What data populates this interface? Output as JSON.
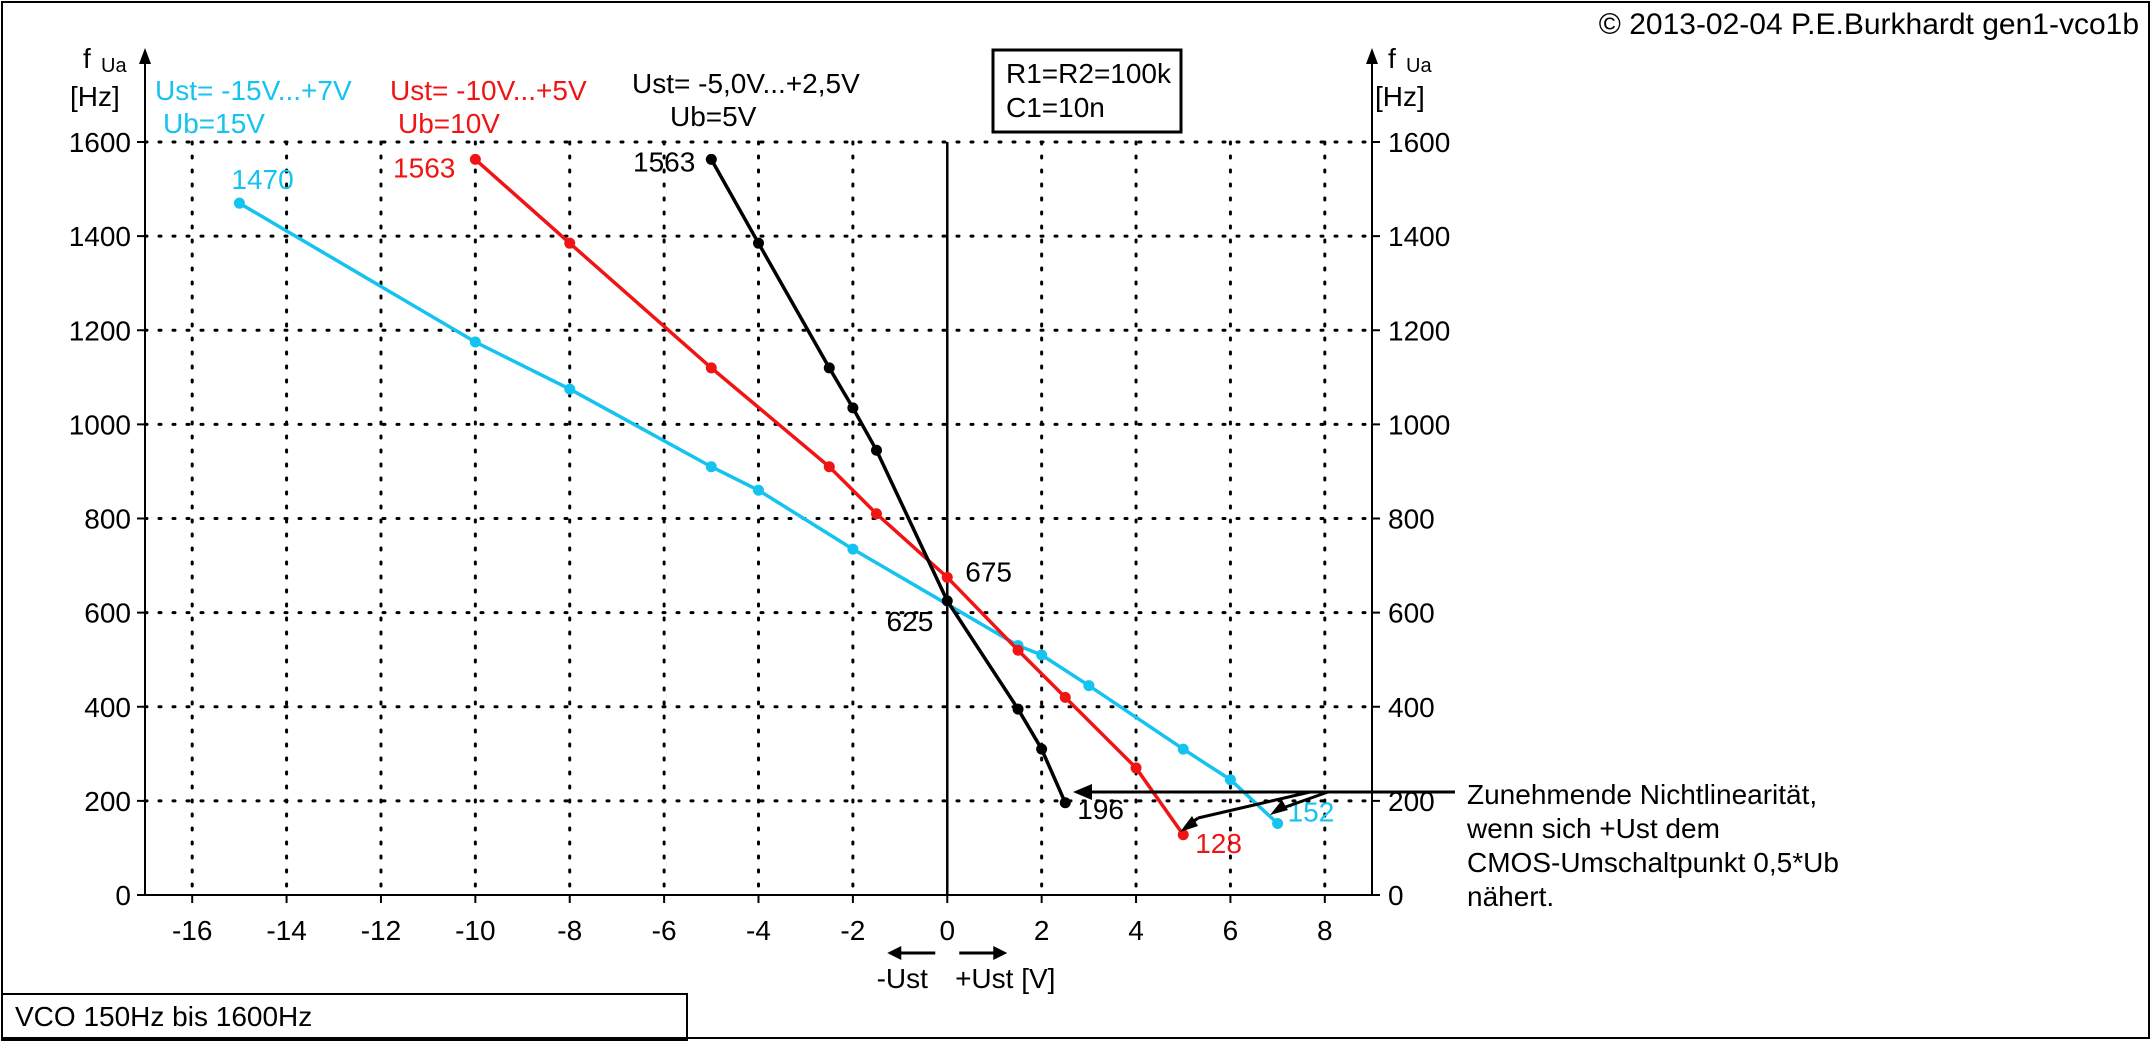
{
  "copyright": "© 2013-02-04 P.E.Burkhardt gen1-vco1b",
  "caption": "VCO 150Hz bis 1600Hz",
  "params_box": [
    "R1=R2=100k",
    "C1=10n"
  ],
  "axis": {
    "y_label_f": "f",
    "y_label_sub": "Ua",
    "y_unit": "[Hz]",
    "x_label_minus": "-Ust",
    "x_label_plus": "+Ust [V]"
  },
  "annotation": [
    "Zunehmende Nichtlinearität,",
    "wenn sich +Ust  dem",
    "CMOS-Umschaltpunkt 0,5*Ub",
    "nähert."
  ],
  "chart_data": {
    "type": "line",
    "xlim": [
      -17,
      9
    ],
    "ylim": [
      0,
      1600
    ],
    "grid": true,
    "x_ticks": [
      -16,
      -14,
      -12,
      -10,
      -8,
      -6,
      -4,
      -2,
      0,
      2,
      4,
      6,
      8
    ],
    "y_ticks": [
      0,
      200,
      400,
      600,
      800,
      1000,
      1200,
      1400,
      1600
    ],
    "series": [
      {
        "name": "Ust= -15V...+7V",
        "sub": "Ub=15V",
        "color": "#14c3ef",
        "x": [
          -15,
          -10,
          -8,
          -5,
          -4,
          -2,
          1.5,
          2,
          3,
          5,
          6,
          7
        ],
        "y": [
          1470,
          1175,
          1075,
          910,
          860,
          735,
          530,
          510,
          445,
          310,
          245,
          152
        ],
        "start_label": "1470",
        "end_label": "152"
      },
      {
        "name": "Ust= -10V...+5V",
        "sub": "Ub=10V",
        "color": "#f01414",
        "x": [
          -10,
          -8,
          -5,
          -2.5,
          -1.5,
          0,
          1.5,
          2.5,
          4,
          5
        ],
        "y": [
          1563,
          1385,
          1120,
          910,
          810,
          675,
          520,
          420,
          270,
          128
        ],
        "start_label": "1563",
        "end_label": "128"
      },
      {
        "name": "Ust= -5,0V...+2,5V",
        "sub": "Ub=5V",
        "color": "#000000",
        "x": [
          -5,
          -4,
          -2.5,
          -2,
          -1.5,
          0,
          1.5,
          2,
          2.5
        ],
        "y": [
          1563,
          1385,
          1120,
          1035,
          945,
          625,
          395,
          310,
          196
        ],
        "start_label": "1563",
        "end_label": "196"
      }
    ],
    "labels_at_zero": [
      "675",
      "625"
    ]
  }
}
